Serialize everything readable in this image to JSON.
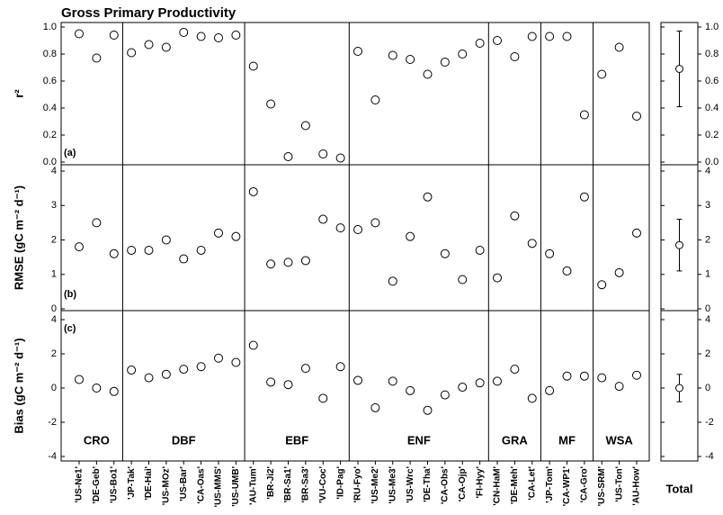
{
  "chart_data": [
    {
      "type": "scatter",
      "title": "Gross Primary Productivity",
      "panel_label": "(a)",
      "ylabel": "r²",
      "ylim": [
        0,
        1
      ],
      "yticks": [
        {
          "value": 0,
          "label": "0.0"
        },
        0.2,
        0.4,
        0.6,
        0.8,
        {
          "value": 1,
          "label": "1.0"
        }
      ],
      "values": [
        0.95,
        0.77,
        0.94,
        0.81,
        0.87,
        0.85,
        0.96,
        0.93,
        0.92,
        0.94,
        0.71,
        0.43,
        0.04,
        0.27,
        0.06,
        0.03,
        0.82,
        0.46,
        0.79,
        0.76,
        0.65,
        0.74,
        0.8,
        0.88,
        0.9,
        0.78,
        0.93,
        0.93,
        0.93,
        0.35,
        0.65,
        0.85,
        0.34
      ],
      "total": {
        "value": 0.69,
        "error": 0.28
      }
    },
    {
      "type": "scatter",
      "panel_label": "(b)",
      "ylabel": "RMSE (gC m⁻² d⁻¹)",
      "ylim": [
        0,
        4
      ],
      "yticks": [
        0,
        1,
        2,
        3,
        4
      ],
      "values": [
        1.8,
        2.5,
        1.6,
        1.7,
        1.7,
        2.0,
        1.45,
        1.7,
        2.2,
        2.1,
        3.4,
        1.3,
        1.35,
        1.4,
        2.6,
        2.35,
        2.3,
        2.5,
        0.8,
        2.1,
        3.25,
        1.6,
        0.85,
        1.7,
        0.9,
        2.7,
        1.9,
        1.6,
        1.1,
        3.25,
        0.7,
        1.05,
        2.2
      ],
      "total": {
        "value": 1.85,
        "error": 0.75
      }
    },
    {
      "type": "scatter",
      "panel_label": "(c)",
      "ylabel": "Bias (gC m⁻² d⁻¹)",
      "ylim": [
        -4,
        4
      ],
      "yticks": [
        -4,
        -2,
        0,
        2,
        4
      ],
      "values": [
        0.5,
        0.0,
        -0.2,
        1.05,
        0.6,
        0.8,
        1.1,
        1.25,
        1.75,
        1.5,
        2.5,
        0.35,
        0.2,
        1.15,
        -0.6,
        1.25,
        0.45,
        -1.15,
        0.4,
        -0.15,
        -1.3,
        -0.4,
        0.05,
        0.3,
        0.4,
        1.1,
        -0.6,
        -0.15,
        0.7,
        0.7,
        0.6,
        0.1,
        0.75
      ],
      "total": {
        "value": 0.0,
        "error": 0.8
      },
      "total_label": "Total",
      "categories": [
        "'US-Ne1'",
        "'DE-Geb'",
        "'US-Bo1'",
        "'JP-Tak'",
        "'DE-Hai'",
        "'US-MOz'",
        "'US-Bar'",
        "'CA-Oas'",
        "'US-MMS'",
        "'US-UMB'",
        "'AU-Tum'",
        "'BR-Ji2'",
        "'BR-Sa1'",
        "'BR-Sa3'",
        "'VU-Coc'",
        "'ID-Pag'",
        "'RU-Fyo'",
        "'US-Me2'",
        "'US-Me3'",
        "'US-Wrc'",
        "'DE-Tha'",
        "'CA-Obs'",
        "'CA-Ojp'",
        "'FI-Hyy'",
        "'CN-HaM'",
        "'DE-Meh'",
        "'CA-Let'",
        "'JP-Tom'",
        "'CA-WP1'",
        "'CA-Gro'",
        "'US-SRM'",
        "'US-Ton'",
        "'AU-How'"
      ],
      "groups": [
        {
          "name": "CRO",
          "count": 3
        },
        {
          "name": "DBF",
          "count": 7
        },
        {
          "name": "EBF",
          "count": 6
        },
        {
          "name": "ENF",
          "count": 8
        },
        {
          "name": "GRA",
          "count": 3
        },
        {
          "name": "MF",
          "count": 3
        },
        {
          "name": "WSA",
          "count": 3
        }
      ]
    }
  ]
}
